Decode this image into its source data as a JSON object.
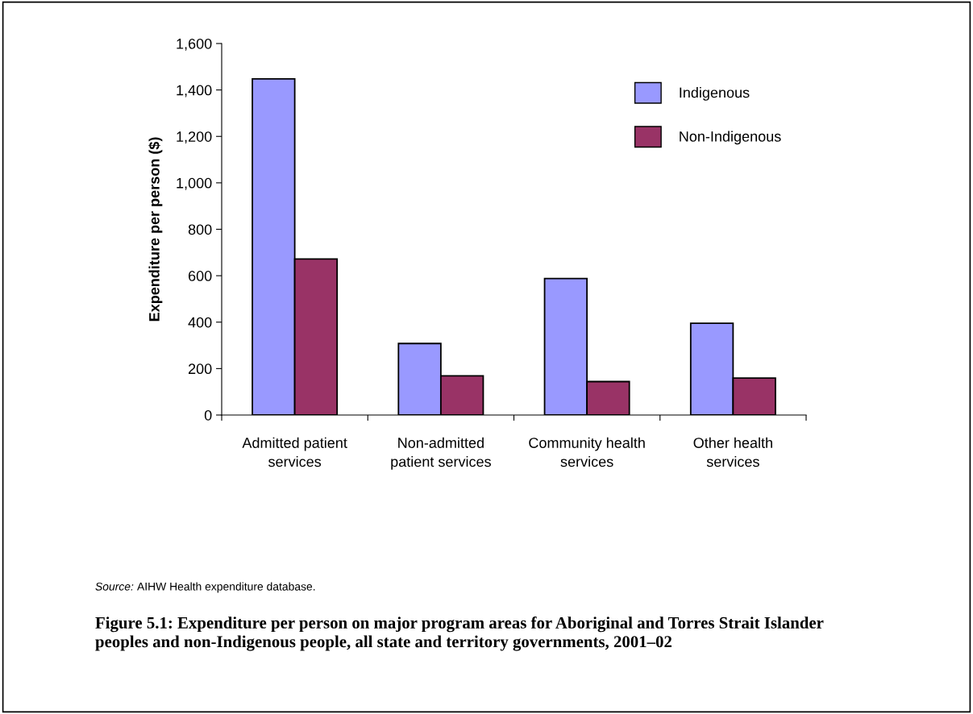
{
  "chart_data": {
    "type": "bar",
    "title": "Figure 5.1: Expenditure per person on major program areas for Aboriginal and Torres Strait Islander peoples and non-Indigenous people, all state and territory governments, 2001–02",
    "ylabel": "Expenditure per person ($)",
    "categories": [
      "Admitted patient\nservices",
      "Non-admitted\npatient services",
      "Community health\nservices",
      "Other health\nservices"
    ],
    "series": [
      {
        "name": "Indigenous",
        "color": "#9999ff",
        "values": [
          1448,
          308,
          588,
          395
        ]
      },
      {
        "name": "Non-Indigenous",
        "color": "#993366",
        "values": [
          672,
          169,
          144,
          159
        ]
      }
    ],
    "ylim": [
      0,
      1600
    ],
    "yticks": [
      {
        "value": 0,
        "label": "0"
      },
      {
        "value": 200,
        "label": "200"
      },
      {
        "value": 400,
        "label": "400"
      },
      {
        "value": 600,
        "label": "600"
      },
      {
        "value": 800,
        "label": "800"
      },
      {
        "value": 1000,
        "label": "1,000"
      },
      {
        "value": 1200,
        "label": "1,200"
      },
      {
        "value": 1400,
        "label": "1,400"
      },
      {
        "value": 1600,
        "label": "1,600"
      }
    ],
    "legend": "top right",
    "grid": false,
    "annotations": [
      "Source: AIHW Health expenditure database."
    ]
  }
}
